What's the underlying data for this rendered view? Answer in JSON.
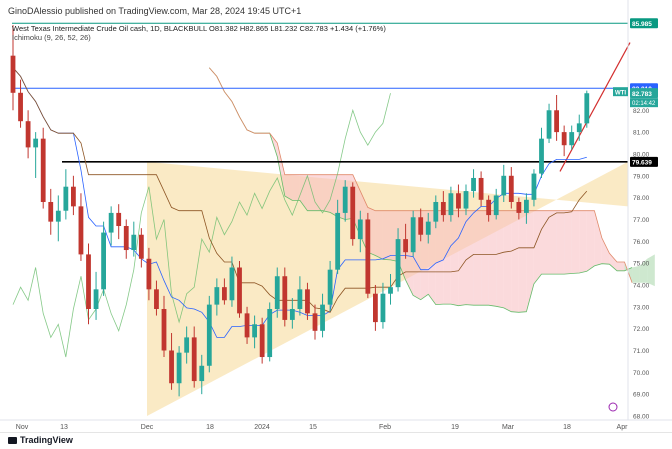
{
  "header": {
    "publisher": "GinoDAlessio published on TradingView.com, Mar 28, 2024 19:45 UTC+1",
    "symbol_line": "West Texas Intermediate Crude Oil cash, 1D, BLACKBULL  O81.382  H82.865  L81.232  C82.783  +1.434 (+1.76%)",
    "indicator_line": "Ichimoku (9, 26, 52, 26)"
  },
  "footer": {
    "brand": "TradingView"
  },
  "colors": {
    "up": "#26a69a",
    "down": "#c1362f",
    "kumo_bull": "#a5d6a7",
    "kumo_bear": "#f8bbbf",
    "triangle": "#f8dfa6",
    "resistance_blue": "#2962ff",
    "support_black": "#000000",
    "top_green": "#089981",
    "trendline": "#d32f2f"
  },
  "chart_data": {
    "type": "candlestick",
    "symbol": "WTI",
    "title": "West Texas Intermediate Crude Oil cash, 1D, BLACKBULL",
    "ohlc_last": {
      "open": 81.382,
      "high": 82.865,
      "low": 81.232,
      "close": 82.783,
      "change": 1.434,
      "change_pct": 1.76
    },
    "ylim": [
      68.0,
      86.5
    ],
    "y_ticks": [
      68.0,
      69.0,
      70.0,
      71.0,
      72.0,
      73.0,
      74.0,
      75.0,
      76.0,
      77.0,
      78.0,
      79.0,
      80.0,
      81.0,
      82.0
    ],
    "x_ticks": [
      "Nov",
      "13",
      "Dec",
      "18",
      "2024",
      "15",
      "Feb",
      "19",
      "Mar",
      "18",
      "Apr"
    ],
    "price_labels": [
      {
        "label": "85.985",
        "value": 85.985,
        "color": "#089981"
      },
      {
        "label": "83.010",
        "value": 83.01,
        "color": "#2962ff"
      },
      {
        "label": "82.783",
        "value": 82.783,
        "color": "#26a69a",
        "tag": "WTI",
        "countdown": "02:14:42"
      },
      {
        "label": "79.639",
        "value": 79.639,
        "color": "#000000"
      }
    ],
    "horizontal_lines": [
      {
        "name": "top-level",
        "value": 85.985,
        "color": "#089981"
      },
      {
        "name": "resistance",
        "value": 83.01,
        "color": "#2962ff"
      },
      {
        "name": "support",
        "value": 79.639,
        "color": "#000000"
      }
    ],
    "candles": [
      [
        84.5,
        85.9,
        82.0,
        82.8
      ],
      [
        82.8,
        83.4,
        81.2,
        81.5
      ],
      [
        81.5,
        82.0,
        79.8,
        80.3
      ],
      [
        80.3,
        81.0,
        78.9,
        80.7
      ],
      [
        80.7,
        81.2,
        77.5,
        77.8
      ],
      [
        77.8,
        78.4,
        76.3,
        76.9
      ],
      [
        76.9,
        78.1,
        76.0,
        77.4
      ],
      [
        77.4,
        79.3,
        77.0,
        78.5
      ],
      [
        78.5,
        79.0,
        77.2,
        77.6
      ],
      [
        77.6,
        78.2,
        75.1,
        75.4
      ],
      [
        75.4,
        75.9,
        72.2,
        72.9
      ],
      [
        72.9,
        74.6,
        72.4,
        73.8
      ],
      [
        73.8,
        76.9,
        73.5,
        76.4
      ],
      [
        76.4,
        77.6,
        75.8,
        77.3
      ],
      [
        77.3,
        77.7,
        76.1,
        76.7
      ],
      [
        76.7,
        77.0,
        75.2,
        75.6
      ],
      [
        75.6,
        76.9,
        75.3,
        76.3
      ],
      [
        76.3,
        76.6,
        74.8,
        75.2
      ],
      [
        75.2,
        75.7,
        73.3,
        73.8
      ],
      [
        73.8,
        74.2,
        72.6,
        72.9
      ],
      [
        72.9,
        73.5,
        70.7,
        71.0
      ],
      [
        71.0,
        71.8,
        69.2,
        69.5
      ],
      [
        69.5,
        71.2,
        68.9,
        70.9
      ],
      [
        70.9,
        72.1,
        70.4,
        71.6
      ],
      [
        71.6,
        72.1,
        69.3,
        69.6
      ],
      [
        69.6,
        70.8,
        69.0,
        70.3
      ],
      [
        70.3,
        73.5,
        70.0,
        73.1
      ],
      [
        73.1,
        74.3,
        72.6,
        73.9
      ],
      [
        73.9,
        74.3,
        73.1,
        73.3
      ],
      [
        73.3,
        75.3,
        73.0,
        74.8
      ],
      [
        74.8,
        75.1,
        72.5,
        72.7
      ],
      [
        72.7,
        73.0,
        71.3,
        71.6
      ],
      [
        71.6,
        72.6,
        71.1,
        72.2
      ],
      [
        72.2,
        72.5,
        70.4,
        70.7
      ],
      [
        70.7,
        73.2,
        70.5,
        72.9
      ],
      [
        72.9,
        74.8,
        72.5,
        74.4
      ],
      [
        74.4,
        74.8,
        72.1,
        72.4
      ],
      [
        72.4,
        73.4,
        72.0,
        72.9
      ],
      [
        72.9,
        74.4,
        72.6,
        73.8
      ],
      [
        73.8,
        74.1,
        72.4,
        72.7
      ],
      [
        72.7,
        73.1,
        71.5,
        71.9
      ],
      [
        71.9,
        73.6,
        71.6,
        73.1
      ],
      [
        73.1,
        75.1,
        72.8,
        74.7
      ],
      [
        74.7,
        77.9,
        74.5,
        77.3
      ],
      [
        77.3,
        78.8,
        76.9,
        78.5
      ],
      [
        78.5,
        78.7,
        75.8,
        76.1
      ],
      [
        76.1,
        77.4,
        75.5,
        77.0
      ],
      [
        77.0,
        77.3,
        73.4,
        73.6
      ],
      [
        73.6,
        74.0,
        71.9,
        72.3
      ],
      [
        72.3,
        74.1,
        72.0,
        73.6
      ],
      [
        73.6,
        74.5,
        73.1,
        73.9
      ],
      [
        73.9,
        76.6,
        73.7,
        76.1
      ],
      [
        76.1,
        76.8,
        75.2,
        75.5
      ],
      [
        75.5,
        77.4,
        75.3,
        77.1
      ],
      [
        77.1,
        77.5,
        76.0,
        76.3
      ],
      [
        76.3,
        77.3,
        75.9,
        76.9
      ],
      [
        76.9,
        78.1,
        76.6,
        77.8
      ],
      [
        77.8,
        78.3,
        76.9,
        77.2
      ],
      [
        77.2,
        78.5,
        76.9,
        78.2
      ],
      [
        78.2,
        78.6,
        77.1,
        77.5
      ],
      [
        77.5,
        78.6,
        77.2,
        78.3
      ],
      [
        78.3,
        79.3,
        78.0,
        78.9
      ],
      [
        78.9,
        79.2,
        77.6,
        77.9
      ],
      [
        77.9,
        78.1,
        76.9,
        77.2
      ],
      [
        77.2,
        78.4,
        77.0,
        78.1
      ],
      [
        78.1,
        79.5,
        77.8,
        79.0
      ],
      [
        79.0,
        79.4,
        77.5,
        77.8
      ],
      [
        77.8,
        78.0,
        77.0,
        77.3
      ],
      [
        77.3,
        78.2,
        76.8,
        77.9
      ],
      [
        77.9,
        79.3,
        77.6,
        79.1
      ],
      [
        79.1,
        81.2,
        78.9,
        80.7
      ],
      [
        80.7,
        82.3,
        80.5,
        82.0
      ],
      [
        82.0,
        82.7,
        80.6,
        81.0
      ],
      [
        81.0,
        81.3,
        79.9,
        80.4
      ],
      [
        80.4,
        81.3,
        80.2,
        81.0
      ],
      [
        81.0,
        81.8,
        80.6,
        81.4
      ],
      [
        81.4,
        82.9,
        81.2,
        82.78
      ]
    ],
    "ichimoku": {
      "params": [
        9,
        26,
        52,
        26
      ]
    }
  }
}
